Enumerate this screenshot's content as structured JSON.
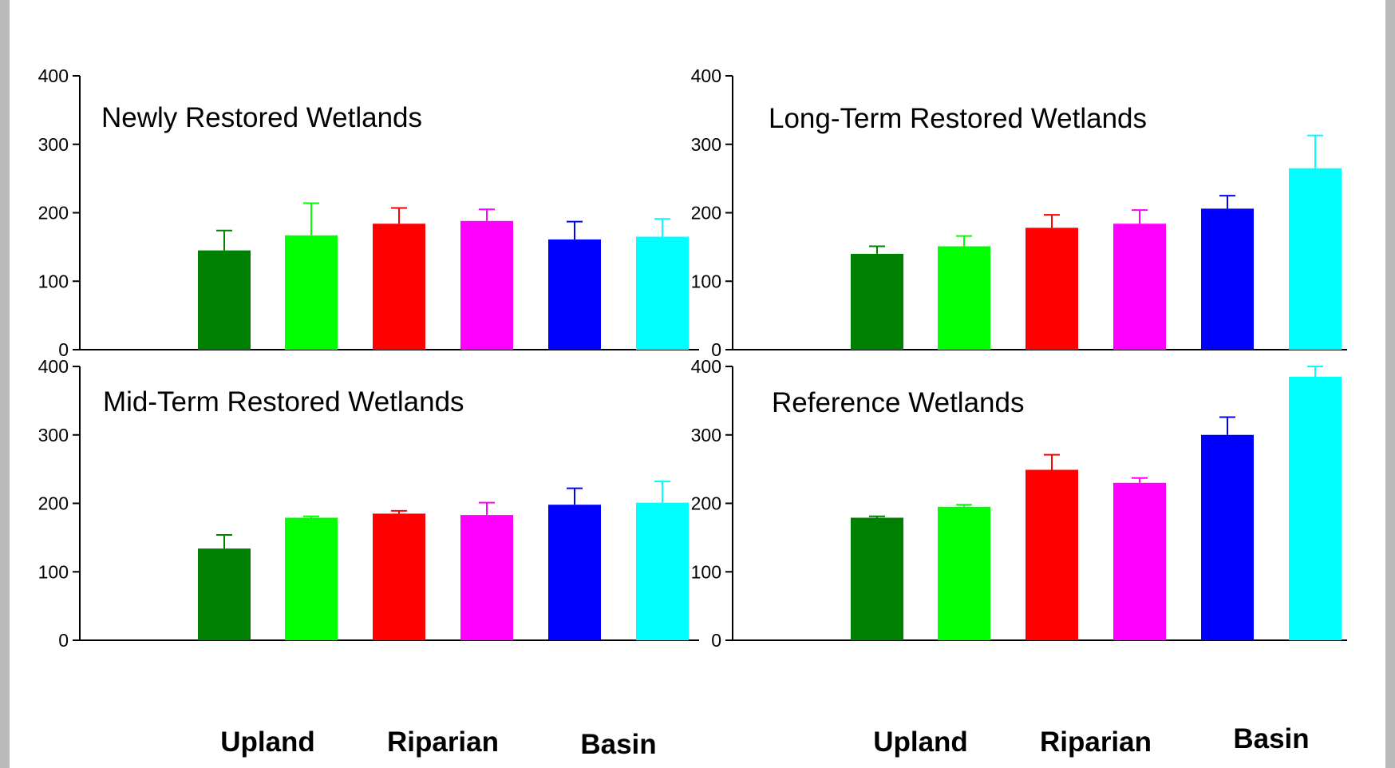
{
  "chart_data": {
    "type": "bar",
    "bar_colors": [
      "#008000",
      "#00ff00",
      "#ff0000",
      "#ff00ff",
      "#0000ff",
      "#00ffff"
    ],
    "ylim": [
      0,
      400
    ],
    "yticks": [
      "0",
      "100",
      "200",
      "300",
      "400"
    ],
    "group_labels": [
      "Upland",
      "Riparian",
      "Basin"
    ],
    "panels": [
      {
        "title": "Newly Restored Wetlands",
        "values": [
          145,
          167,
          184,
          188,
          161,
          165
        ],
        "errors": [
          29,
          47,
          23,
          17,
          26,
          26
        ]
      },
      {
        "title": "Long-Term Restored Wetlands",
        "values": [
          140,
          151,
          178,
          184,
          206,
          265
        ],
        "errors": [
          11,
          15,
          19,
          20,
          19,
          48
        ]
      },
      {
        "title": "Mid-Term Restored Wetlands",
        "values": [
          134,
          179,
          185,
          183,
          198,
          201
        ],
        "errors": [
          20,
          2,
          4,
          18,
          24,
          31
        ]
      },
      {
        "title": "Reference Wetlands",
        "values": [
          179,
          195,
          249,
          230,
          300,
          385
        ],
        "errors": [
          2,
          3,
          22,
          7,
          26,
          15
        ]
      }
    ]
  }
}
